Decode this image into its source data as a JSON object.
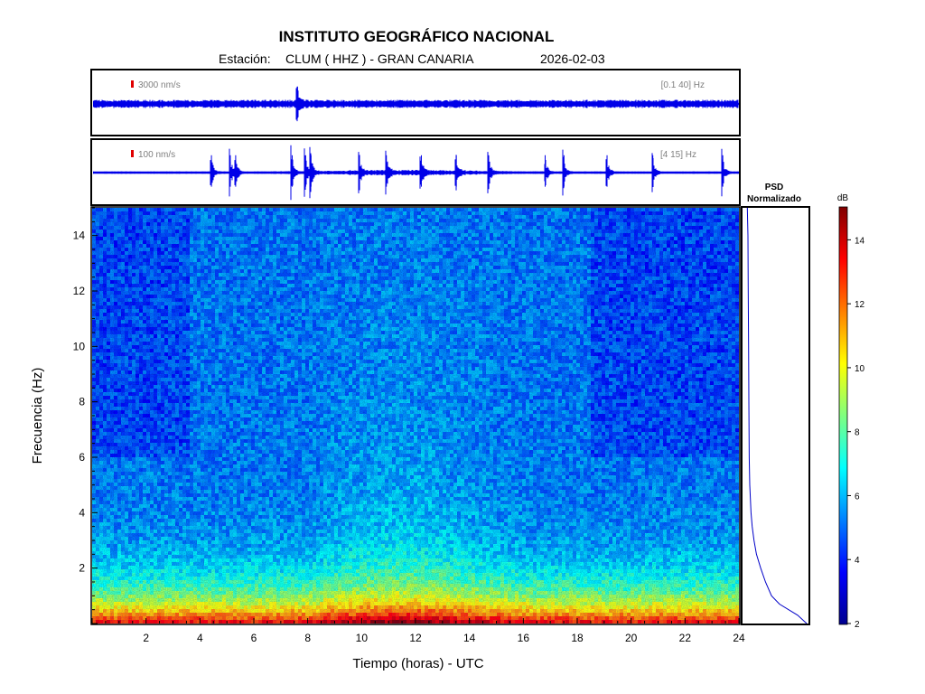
{
  "header": {
    "title": "INSTITUTO GEOGRÁFICO NACIONAL",
    "station_label": "Estación:",
    "station_code": "CLUM ( HHZ ) - GRAN CANARIA",
    "date": "2026-02-03"
  },
  "chart_data": [
    {
      "type": "line",
      "panel": "waveform-broadband",
      "amplitude_label": "3000 nm/s",
      "band_label": "[0.1 40] Hz",
      "xlim": [
        0,
        24
      ],
      "events_hours": [
        7.6
      ]
    },
    {
      "type": "line",
      "panel": "waveform-filtered",
      "amplitude_label": "100 nm/s",
      "band_label": "[4 15] Hz",
      "xlim": [
        0,
        24
      ],
      "events_hours": [
        4.4,
        5.1,
        5.3,
        7.4,
        7.9,
        8.1,
        9.9,
        10.9,
        12.2,
        13.5,
        14.7,
        16.8,
        17.5,
        19.1,
        20.8,
        23.4
      ]
    },
    {
      "type": "heatmap",
      "panel": "spectrogram",
      "xlabel": "Tiempo (horas) - UTC",
      "ylabel": "Frecuencia  (Hz)",
      "xlim": [
        0,
        24
      ],
      "ylim": [
        0,
        15
      ],
      "x_ticks": [
        2,
        4,
        6,
        8,
        10,
        12,
        14,
        16,
        18,
        20,
        22,
        24
      ],
      "y_ticks": [
        2,
        4,
        6,
        8,
        10,
        12,
        14
      ]
    },
    {
      "type": "line",
      "panel": "psd",
      "title_line1": "PSD",
      "title_line2": "Normalizado",
      "ylim": [
        0,
        15
      ],
      "profile": [
        [
          0.0,
          1.0
        ],
        [
          0.3,
          0.85
        ],
        [
          0.7,
          0.55
        ],
        [
          1.0,
          0.42
        ],
        [
          1.5,
          0.32
        ],
        [
          2.0,
          0.24
        ],
        [
          2.5,
          0.17
        ],
        [
          3.0,
          0.13
        ],
        [
          3.5,
          0.1
        ],
        [
          4.0,
          0.08
        ],
        [
          5.0,
          0.06
        ],
        [
          6.0,
          0.05
        ],
        [
          8.0,
          0.045
        ],
        [
          10.0,
          0.04
        ],
        [
          12.0,
          0.035
        ],
        [
          14.0,
          0.03
        ],
        [
          15.0,
          0.02
        ]
      ]
    },
    {
      "type": "heatmap",
      "panel": "colorbar",
      "label": "dB",
      "range": [
        2,
        15
      ],
      "ticks": [
        2,
        4,
        6,
        8,
        10,
        12,
        14
      ]
    }
  ]
}
